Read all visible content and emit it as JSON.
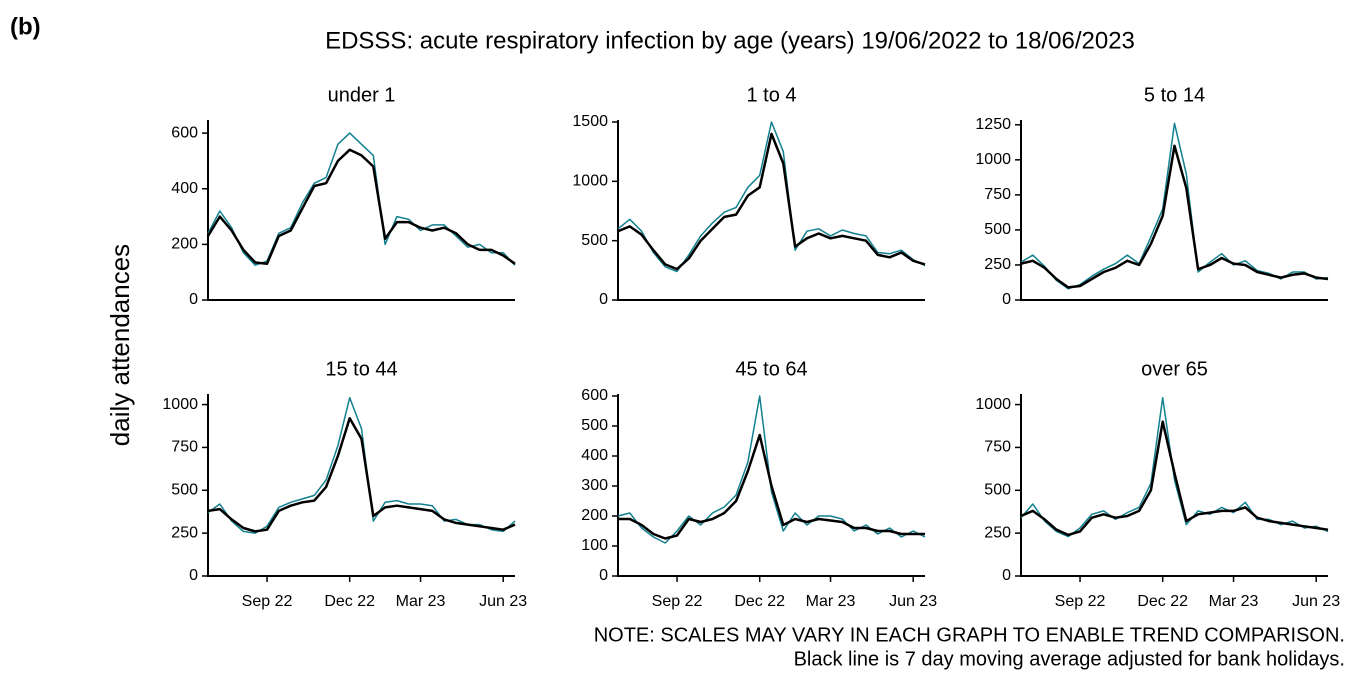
{
  "label": "(b)",
  "title": "EDSSS: acute respiratory infection by age (years) 19/06/2022 to 18/06/2023",
  "y_label": "daily attendances",
  "notes": [
    "NOTE: SCALES MAY VARY IN EACH GRAPH TO ENABLE TREND COMPARISON.",
    "Black line is 7 day moving average adjusted for bank holidays."
  ],
  "chart_data": [
    {
      "type": "line",
      "title": "under 1",
      "categories": [
        null,
        null,
        null,
        null,
        null,
        null,
        null,
        null,
        null,
        null,
        null,
        null,
        null,
        null,
        null,
        null,
        null,
        null,
        null,
        null,
        null,
        null,
        null,
        null,
        null,
        null,
        null
      ],
      "ylim": [
        0,
        640
      ],
      "yticks": [
        0,
        200,
        400,
        600
      ],
      "series": [
        {
          "color": "#12808f",
          "values": [
            240,
            320,
            260,
            170,
            125,
            140,
            240,
            260,
            350,
            420,
            440,
            560,
            600,
            560,
            520,
            200,
            300,
            290,
            250,
            270,
            270,
            230,
            190,
            200,
            170,
            170,
            125
          ]
        },
        {
          "color": "#000000",
          "values": [
            230,
            300,
            250,
            180,
            135,
            130,
            230,
            250,
            330,
            410,
            420,
            500,
            540,
            520,
            480,
            220,
            280,
            280,
            260,
            250,
            260,
            240,
            200,
            180,
            180,
            160,
            130
          ]
        }
      ]
    },
    {
      "type": "line",
      "title": "1 to 4",
      "categories": [
        null,
        null,
        null,
        null,
        null,
        null,
        null,
        null,
        null,
        null,
        null,
        null,
        null,
        null,
        null,
        null,
        null,
        null,
        null,
        null,
        null,
        null,
        null,
        null,
        null,
        null,
        null
      ],
      "ylim": [
        0,
        1500
      ],
      "yticks": [
        0,
        500,
        1000,
        1500
      ],
      "series": [
        {
          "color": "#12808f",
          "values": [
            600,
            680,
            580,
            400,
            280,
            240,
            380,
            540,
            650,
            740,
            780,
            950,
            1050,
            1500,
            1250,
            420,
            580,
            600,
            540,
            590,
            560,
            540,
            400,
            390,
            420,
            340,
            290
          ]
        },
        {
          "color": "#000000",
          "values": [
            580,
            620,
            550,
            420,
            300,
            260,
            350,
            500,
            600,
            700,
            720,
            880,
            950,
            1400,
            1150,
            450,
            520,
            560,
            520,
            540,
            520,
            500,
            380,
            360,
            400,
            330,
            300
          ]
        }
      ]
    },
    {
      "type": "line",
      "title": "5 to 14",
      "categories": [
        null,
        null,
        null,
        null,
        null,
        null,
        null,
        null,
        null,
        null,
        null,
        null,
        null,
        null,
        null,
        null,
        null,
        null,
        null,
        null,
        null,
        null,
        null,
        null,
        null,
        null,
        null
      ],
      "ylim": [
        0,
        1270
      ],
      "yticks": [
        0,
        250,
        500,
        750,
        1000,
        1250
      ],
      "series": [
        {
          "color": "#12808f",
          "values": [
            270,
            320,
            240,
            140,
            80,
            110,
            170,
            220,
            260,
            320,
            260,
            450,
            650,
            1260,
            900,
            200,
            270,
            330,
            250,
            280,
            210,
            190,
            150,
            200,
            200,
            150,
            160
          ]
        },
        {
          "color": "#000000",
          "values": [
            260,
            280,
            230,
            150,
            90,
            100,
            150,
            200,
            230,
            280,
            250,
            400,
            600,
            1100,
            800,
            220,
            250,
            300,
            260,
            250,
            200,
            180,
            160,
            180,
            190,
            160,
            150
          ]
        }
      ]
    },
    {
      "type": "line",
      "title": "15 to 44",
      "categories": [
        null,
        null,
        null,
        null,
        null,
        "Sep 22",
        null,
        null,
        null,
        null,
        null,
        null,
        "Dec 22",
        null,
        null,
        null,
        null,
        null,
        "Mar 23",
        null,
        null,
        null,
        null,
        null,
        null,
        "Jun 23",
        null
      ],
      "ylim": [
        0,
        1050
      ],
      "yticks": [
        0,
        250,
        500,
        750,
        1000
      ],
      "series": [
        {
          "color": "#12808f",
          "values": [
            370,
            420,
            320,
            260,
            250,
            290,
            400,
            430,
            450,
            470,
            560,
            760,
            1040,
            860,
            320,
            430,
            440,
            420,
            420,
            410,
            320,
            330,
            300,
            300,
            270,
            260,
            320
          ]
        },
        {
          "color": "#000000",
          "values": [
            380,
            390,
            330,
            280,
            260,
            270,
            380,
            410,
            430,
            440,
            520,
            700,
            920,
            800,
            350,
            400,
            410,
            400,
            390,
            380,
            330,
            310,
            300,
            290,
            280,
            270,
            300
          ]
        }
      ]
    },
    {
      "type": "line",
      "title": "45 to 64",
      "categories": [
        null,
        null,
        null,
        null,
        null,
        "Sep 22",
        null,
        null,
        null,
        null,
        null,
        null,
        "Dec 22",
        null,
        null,
        null,
        null,
        null,
        "Mar 23",
        null,
        null,
        null,
        null,
        null,
        null,
        "Jun 23",
        null
      ],
      "ylim": [
        0,
        600
      ],
      "yticks": [
        0,
        100,
        200,
        300,
        400,
        500,
        600
      ],
      "series": [
        {
          "color": "#12808f",
          "values": [
            200,
            210,
            160,
            130,
            110,
            150,
            200,
            170,
            210,
            230,
            270,
            380,
            600,
            280,
            150,
            210,
            170,
            200,
            200,
            190,
            150,
            170,
            140,
            160,
            130,
            150,
            130
          ]
        },
        {
          "color": "#000000",
          "values": [
            190,
            190,
            170,
            140,
            125,
            135,
            190,
            180,
            190,
            210,
            250,
            350,
            470,
            300,
            170,
            190,
            180,
            190,
            185,
            180,
            160,
            160,
            150,
            150,
            140,
            140,
            140
          ]
        }
      ]
    },
    {
      "type": "line",
      "title": "over 65",
      "categories": [
        null,
        null,
        null,
        null,
        null,
        "Sep 22",
        null,
        null,
        null,
        null,
        null,
        null,
        "Dec 22",
        null,
        null,
        null,
        null,
        null,
        "Mar 23",
        null,
        null,
        null,
        null,
        null,
        null,
        "Jun 23",
        null
      ],
      "ylim": [
        0,
        1050
      ],
      "yticks": [
        0,
        250,
        500,
        750,
        1000
      ],
      "series": [
        {
          "color": "#12808f",
          "values": [
            340,
            420,
            320,
            260,
            230,
            280,
            360,
            380,
            330,
            370,
            400,
            540,
            1040,
            560,
            300,
            380,
            360,
            400,
            370,
            430,
            330,
            330,
            300,
            320,
            280,
            290,
            260
          ]
        },
        {
          "color": "#000000",
          "values": [
            350,
            380,
            330,
            270,
            240,
            260,
            340,
            360,
            340,
            350,
            380,
            500,
            900,
            600,
            320,
            360,
            370,
            380,
            380,
            400,
            340,
            320,
            310,
            300,
            290,
            280,
            270
          ]
        }
      ]
    }
  ]
}
